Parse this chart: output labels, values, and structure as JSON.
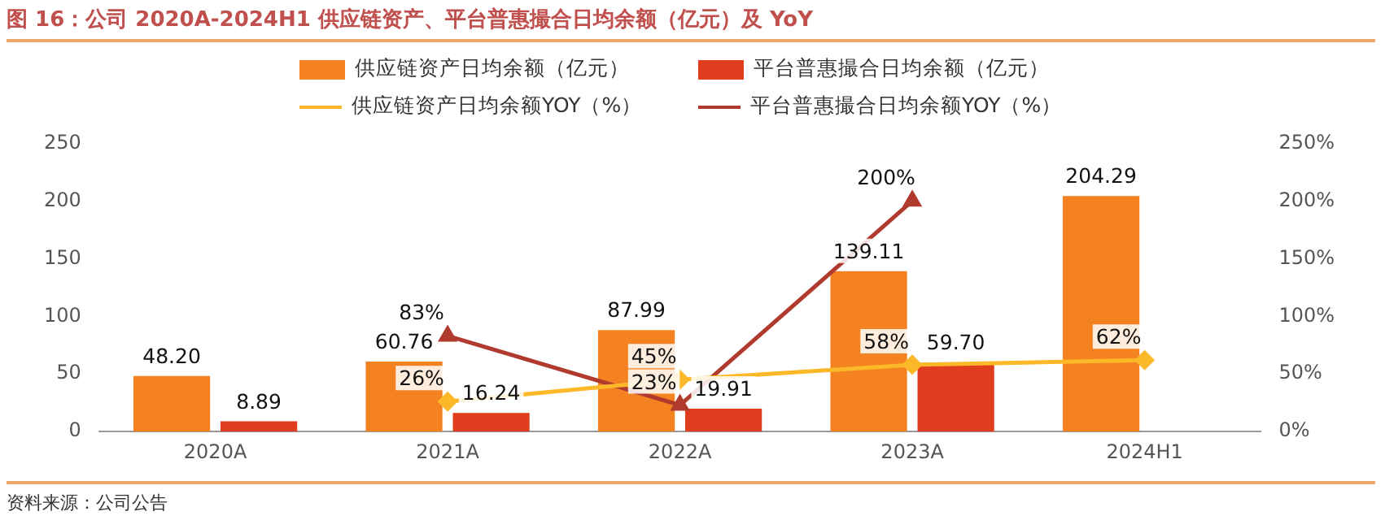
{
  "chart_data": {
    "type": "bar",
    "title": "图 16：公司 2020A-2024H1 供应链资产、平台普惠撮合日均余额（亿元）及 YoY",
    "categories": [
      "2020A",
      "2021A",
      "2022A",
      "2023A",
      "2024H1"
    ],
    "series": [
      {
        "name": "供应链资产日均余额（亿元）",
        "color": "#f58220",
        "values": [
          48.2,
          60.76,
          87.99,
          139.11,
          204.29
        ],
        "value_labels": [
          "48.20",
          "60.76",
          "87.99",
          "139.11",
          "204.29"
        ]
      },
      {
        "name": "平台普惠撮合日均余额（亿元）",
        "color": "#e03c1e",
        "values": [
          8.89,
          16.24,
          19.91,
          59.7,
          null
        ],
        "value_labels": [
          "8.89",
          "16.24",
          "19.91",
          "59.70",
          null
        ]
      },
      {
        "name": "供应链资产日均余额YOY（%）",
        "type": "line",
        "axis": "y2",
        "marker": "diamond",
        "color": "#fbb829",
        "values": [
          null,
          26,
          45,
          58,
          62
        ],
        "value_labels": [
          null,
          "26%",
          "45%",
          "58%",
          "62%"
        ]
      },
      {
        "name": "平台普惠撮合日均余额YOY（%）",
        "type": "line",
        "axis": "y2",
        "marker": "triangle",
        "color": "#b03a2e",
        "values": [
          null,
          83,
          23,
          200,
          null
        ],
        "value_labels": [
          null,
          "83%",
          "23%",
          "200%",
          null
        ]
      }
    ],
    "ylim": [
      0,
      250
    ],
    "yticks": [
      0,
      50,
      100,
      150,
      200,
      250
    ],
    "y2lim": [
      0,
      250
    ],
    "y2ticks": [
      {
        "value": 0,
        "label": "0%"
      },
      {
        "value": 50,
        "label": "50%"
      },
      {
        "value": 100,
        "label": "100%"
      },
      {
        "value": 150,
        "label": "150%"
      },
      {
        "value": 200,
        "label": "200%"
      },
      {
        "value": 250,
        "label": "250%"
      }
    ],
    "grid": false,
    "legend": "top",
    "annotations": [
      "资料来源：公司公告"
    ]
  }
}
